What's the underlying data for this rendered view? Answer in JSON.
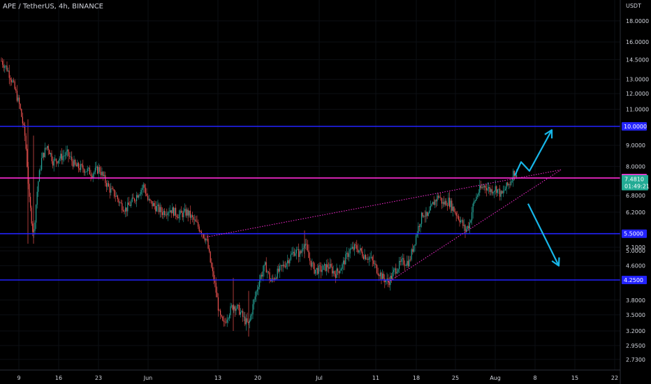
{
  "header": {
    "title": "APE / TetherUS, 4h, BINANCE"
  },
  "chart_data": {
    "type": "candlestick",
    "symbol": "APE / TetherUS",
    "interval": "4h",
    "exchange": "BINANCE",
    "y_unit": "USDT",
    "y_scale": "log",
    "ylim": [
      2.5,
      21
    ],
    "y_ticks": [
      "18.0000",
      "16.0000",
      "14.5000",
      "13.0000",
      "12.0000",
      "11.0000",
      "9.0000",
      "8.0000",
      "6.8000",
      "6.2000",
      "5.1000",
      "5.0000",
      "4.6000",
      "3.8000",
      "3.5000",
      "3.2000",
      "2.9500",
      "2.7300"
    ],
    "x_ticks": [
      "9",
      "16",
      "23",
      "Jun",
      "13",
      "20",
      "Jul",
      "11",
      "18",
      "25",
      "Aug",
      "8",
      "15",
      "22"
    ],
    "horizontal_levels": [
      {
        "value": 10.0,
        "label": "10.0000",
        "color": "#2323ff"
      },
      {
        "value": 7.5,
        "label": "7.5000",
        "color": "#ff2bd6"
      },
      {
        "value": 5.5,
        "label": "5.5000",
        "color": "#2323ff"
      },
      {
        "value": 4.25,
        "label": "4.2500",
        "color": "#2323ff"
      }
    ],
    "last_price": {
      "value": 7.481,
      "label": "7.4810",
      "countdown": "01:49:21",
      "color": "#22ab94"
    },
    "trendlines": [
      {
        "from": [
          0,
          5.4
        ],
        "to": [
          800,
          7.9
        ],
        "color": "#ff2bd6",
        "style": "dotted"
      },
      {
        "from": [
          548,
          4.2
        ],
        "to": [
          800,
          7.9
        ],
        "color": "#ff2bd6",
        "style": "dotted"
      }
    ],
    "price_path": [
      [
        2,
        14.4
      ],
      [
        10,
        13.8
      ],
      [
        18,
        12.8
      ],
      [
        28,
        11.2
      ],
      [
        36,
        9.4
      ],
      [
        42,
        6.6
      ],
      [
        48,
        5.4
      ],
      [
        54,
        7.2
      ],
      [
        60,
        8.4
      ],
      [
        68,
        9.0
      ],
      [
        76,
        8.2
      ],
      [
        86,
        8.4
      ],
      [
        96,
        8.6
      ],
      [
        108,
        8.0
      ],
      [
        120,
        7.9
      ],
      [
        132,
        7.7
      ],
      [
        142,
        7.9
      ],
      [
        150,
        7.4
      ],
      [
        158,
        7.0
      ],
      [
        166,
        6.8
      ],
      [
        172,
        6.5
      ],
      [
        180,
        6.3
      ],
      [
        190,
        6.6
      ],
      [
        198,
        6.9
      ],
      [
        206,
        7.2
      ],
      [
        212,
        6.6
      ],
      [
        222,
        6.4
      ],
      [
        232,
        6.2
      ],
      [
        244,
        6.3
      ],
      [
        256,
        6.1
      ],
      [
        268,
        6.2
      ],
      [
        278,
        5.9
      ],
      [
        288,
        5.6
      ],
      [
        296,
        5.3
      ],
      [
        302,
        4.6
      ],
      [
        308,
        4.1
      ],
      [
        314,
        3.5
      ],
      [
        320,
        3.3
      ],
      [
        326,
        3.5
      ],
      [
        334,
        3.7
      ],
      [
        342,
        3.6
      ],
      [
        350,
        3.4
      ],
      [
        356,
        3.3
      ],
      [
        364,
        3.8
      ],
      [
        372,
        4.3
      ],
      [
        380,
        4.6
      ],
      [
        388,
        4.2
      ],
      [
        396,
        4.4
      ],
      [
        406,
        4.6
      ],
      [
        414,
        4.8
      ],
      [
        422,
        5.0
      ],
      [
        430,
        4.9
      ],
      [
        436,
        5.3
      ],
      [
        442,
        4.8
      ],
      [
        450,
        4.5
      ],
      [
        460,
        4.5
      ],
      [
        470,
        4.6
      ],
      [
        480,
        4.4
      ],
      [
        490,
        4.6
      ],
      [
        500,
        5.0
      ],
      [
        510,
        5.1
      ],
      [
        520,
        4.9
      ],
      [
        530,
        4.8
      ],
      [
        540,
        4.5
      ],
      [
        548,
        4.3
      ],
      [
        556,
        4.2
      ],
      [
        566,
        4.5
      ],
      [
        576,
        4.7
      ],
      [
        586,
        4.7
      ],
      [
        594,
        5.3
      ],
      [
        600,
        5.8
      ],
      [
        606,
        6.2
      ],
      [
        612,
        6.0
      ],
      [
        620,
        6.5
      ],
      [
        628,
        6.8
      ],
      [
        634,
        6.5
      ],
      [
        642,
        6.6
      ],
      [
        652,
        6.2
      ],
      [
        660,
        5.9
      ],
      [
        666,
        5.6
      ],
      [
        672,
        5.8
      ],
      [
        678,
        6.5
      ],
      [
        686,
        7.0
      ],
      [
        694,
        7.2
      ],
      [
        702,
        7.0
      ],
      [
        710,
        7.1
      ],
      [
        718,
        6.8
      ],
      [
        724,
        7.1
      ],
      [
        730,
        7.3
      ],
      [
        736,
        7.8
      ],
      [
        740,
        7.48
      ]
    ],
    "annotations": [
      {
        "type": "arrow",
        "color": "#17b6e8",
        "direction": "up",
        "path": [
          [
            737,
            7.6
          ],
          [
            746,
            8.2
          ],
          [
            758,
            7.8
          ],
          [
            790,
            9.8
          ]
        ]
      },
      {
        "type": "arrow",
        "color": "#17b6e8",
        "direction": "down",
        "path": [
          [
            756,
            6.5
          ],
          [
            800,
            4.6
          ]
        ]
      }
    ]
  }
}
